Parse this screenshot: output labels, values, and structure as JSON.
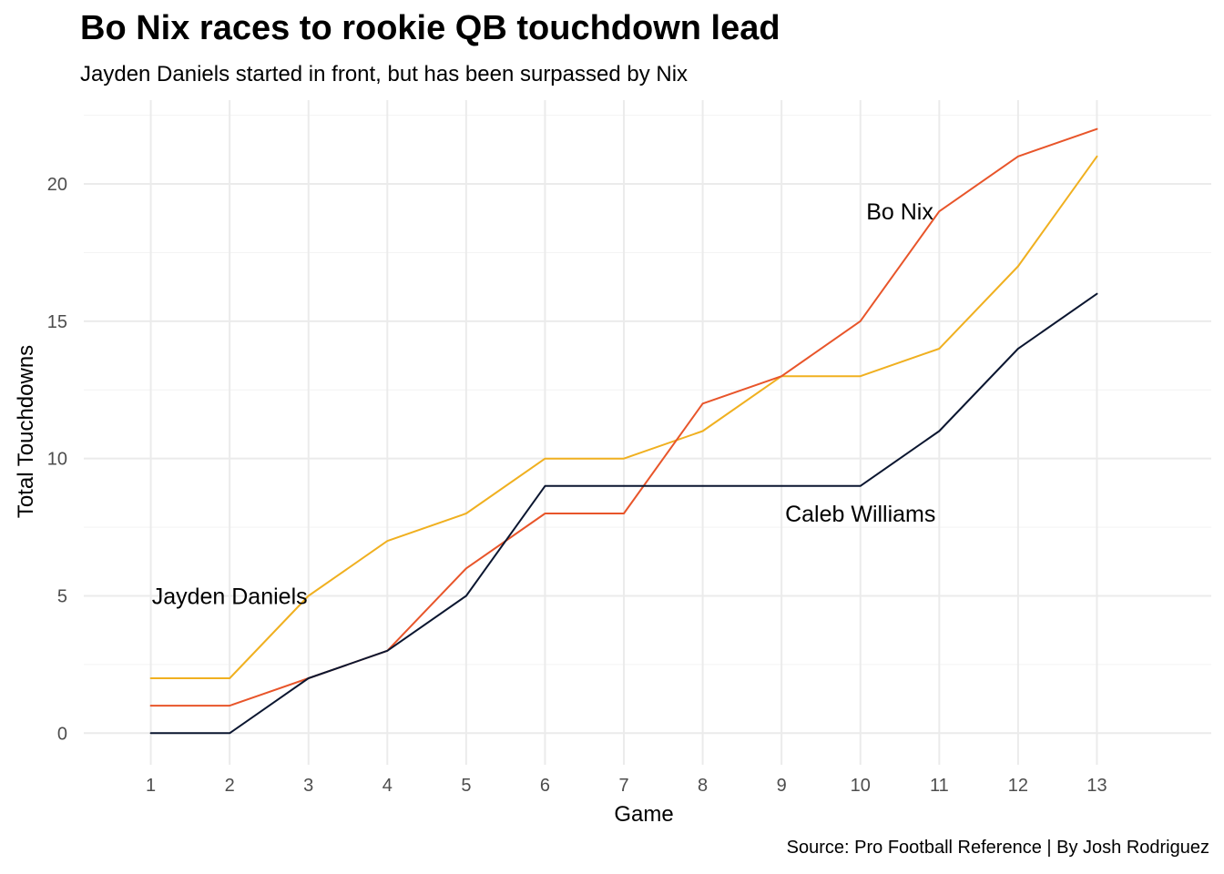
{
  "chart_data": {
    "type": "line",
    "title": "Bo Nix races to rookie QB touchdown lead",
    "subtitle": "Jayden Daniels started in front, but has been surpassed by Nix",
    "caption": "Source: Pro Football Reference | By Josh Rodriguez",
    "xlabel": "Game",
    "ylabel": "Total Touchdowns",
    "x": [
      1,
      2,
      3,
      4,
      5,
      6,
      7,
      8,
      9,
      10,
      11,
      12,
      13
    ],
    "xlim": [
      0.15,
      14.45
    ],
    "ylim": [
      -1.15,
      23.05
    ],
    "xticks": [
      1,
      2,
      3,
      4,
      5,
      6,
      7,
      8,
      9,
      10,
      11,
      12,
      13
    ],
    "yticks": [
      0,
      5,
      10,
      15,
      20
    ],
    "grid": true,
    "legend": "none (direct labels)",
    "series": [
      {
        "name": "Jayden Daniels",
        "color": "#f0b020",
        "values": [
          2,
          2,
          5,
          7,
          8,
          10,
          10,
          11,
          13,
          13,
          14,
          17,
          21
        ],
        "label_at": [
          2,
          5
        ]
      },
      {
        "name": "Bo Nix",
        "color": "#e8552a",
        "values": [
          1,
          1,
          2,
          3,
          6,
          8,
          8,
          12,
          13,
          15,
          19,
          21,
          22
        ],
        "label_at": [
          10.5,
          19
        ]
      },
      {
        "name": "Caleb Williams",
        "color": "#0b1630",
        "values": [
          0,
          0,
          2,
          3,
          5,
          9,
          9,
          9,
          9,
          9,
          11,
          14,
          16
        ],
        "label_at": [
          10,
          8
        ]
      }
    ]
  }
}
